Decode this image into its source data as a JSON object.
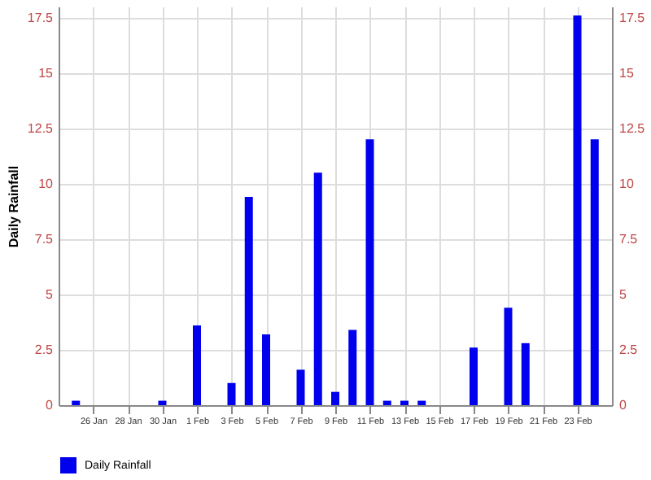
{
  "chart_data": {
    "type": "bar",
    "ylabel": "Daily Rainfall",
    "x": [
      "--01-25",
      "--01-30",
      "--02-01",
      "--02-03",
      "--02-04",
      "--02-05",
      "--02-07",
      "--02-08",
      "--02-09",
      "--02-10",
      "--02-11",
      "--02-12",
      "--02-13",
      "--02-14",
      "--02-17",
      "--02-19",
      "--02-20",
      "--02-23",
      "--02-24"
    ],
    "series": [
      {
        "name": "Daily Rainfall",
        "color": "#0000ee",
        "values": [
          0.2,
          0.2,
          3.6,
          1.0,
          9.4,
          3.2,
          1.6,
          10.5,
          0.6,
          3.4,
          12.0,
          0.2,
          0.2,
          0.2,
          2.6,
          4.4,
          2.8,
          17.6,
          12.0
        ]
      }
    ],
    "xlim": [
      "--01-24",
      "--02-25"
    ],
    "xticks": [
      {
        "value": "--01-26",
        "label": "26 Jan"
      },
      {
        "value": "--01-28",
        "label": "28 Jan"
      },
      {
        "value": "--01-30",
        "label": "30 Jan"
      },
      {
        "value": "--02-01",
        "label": "1 Feb"
      },
      {
        "value": "--02-03",
        "label": "3 Feb"
      },
      {
        "value": "--02-05",
        "label": "5 Feb"
      },
      {
        "value": "--02-07",
        "label": "7 Feb"
      },
      {
        "value": "--02-09",
        "label": "9 Feb"
      },
      {
        "value": "--02-11",
        "label": "11 Feb"
      },
      {
        "value": "--02-13",
        "label": "13 Feb"
      },
      {
        "value": "--02-15",
        "label": "15 Feb"
      },
      {
        "value": "--02-17",
        "label": "17 Feb"
      },
      {
        "value": "--02-19",
        "label": "19 Feb"
      },
      {
        "value": "--02-21",
        "label": "21 Feb"
      },
      {
        "value": "--02-23",
        "label": "23 Feb"
      }
    ],
    "ylim": [
      0,
      18
    ],
    "yticks": [
      0,
      2.5,
      5,
      7.5,
      10,
      12.5,
      15,
      17.5
    ],
    "y2lim": [
      0,
      18
    ],
    "y2ticks": [
      0,
      2.5,
      5,
      7.5,
      10,
      12.5,
      15,
      17.5
    ],
    "grid": true,
    "legend": "bottom"
  }
}
